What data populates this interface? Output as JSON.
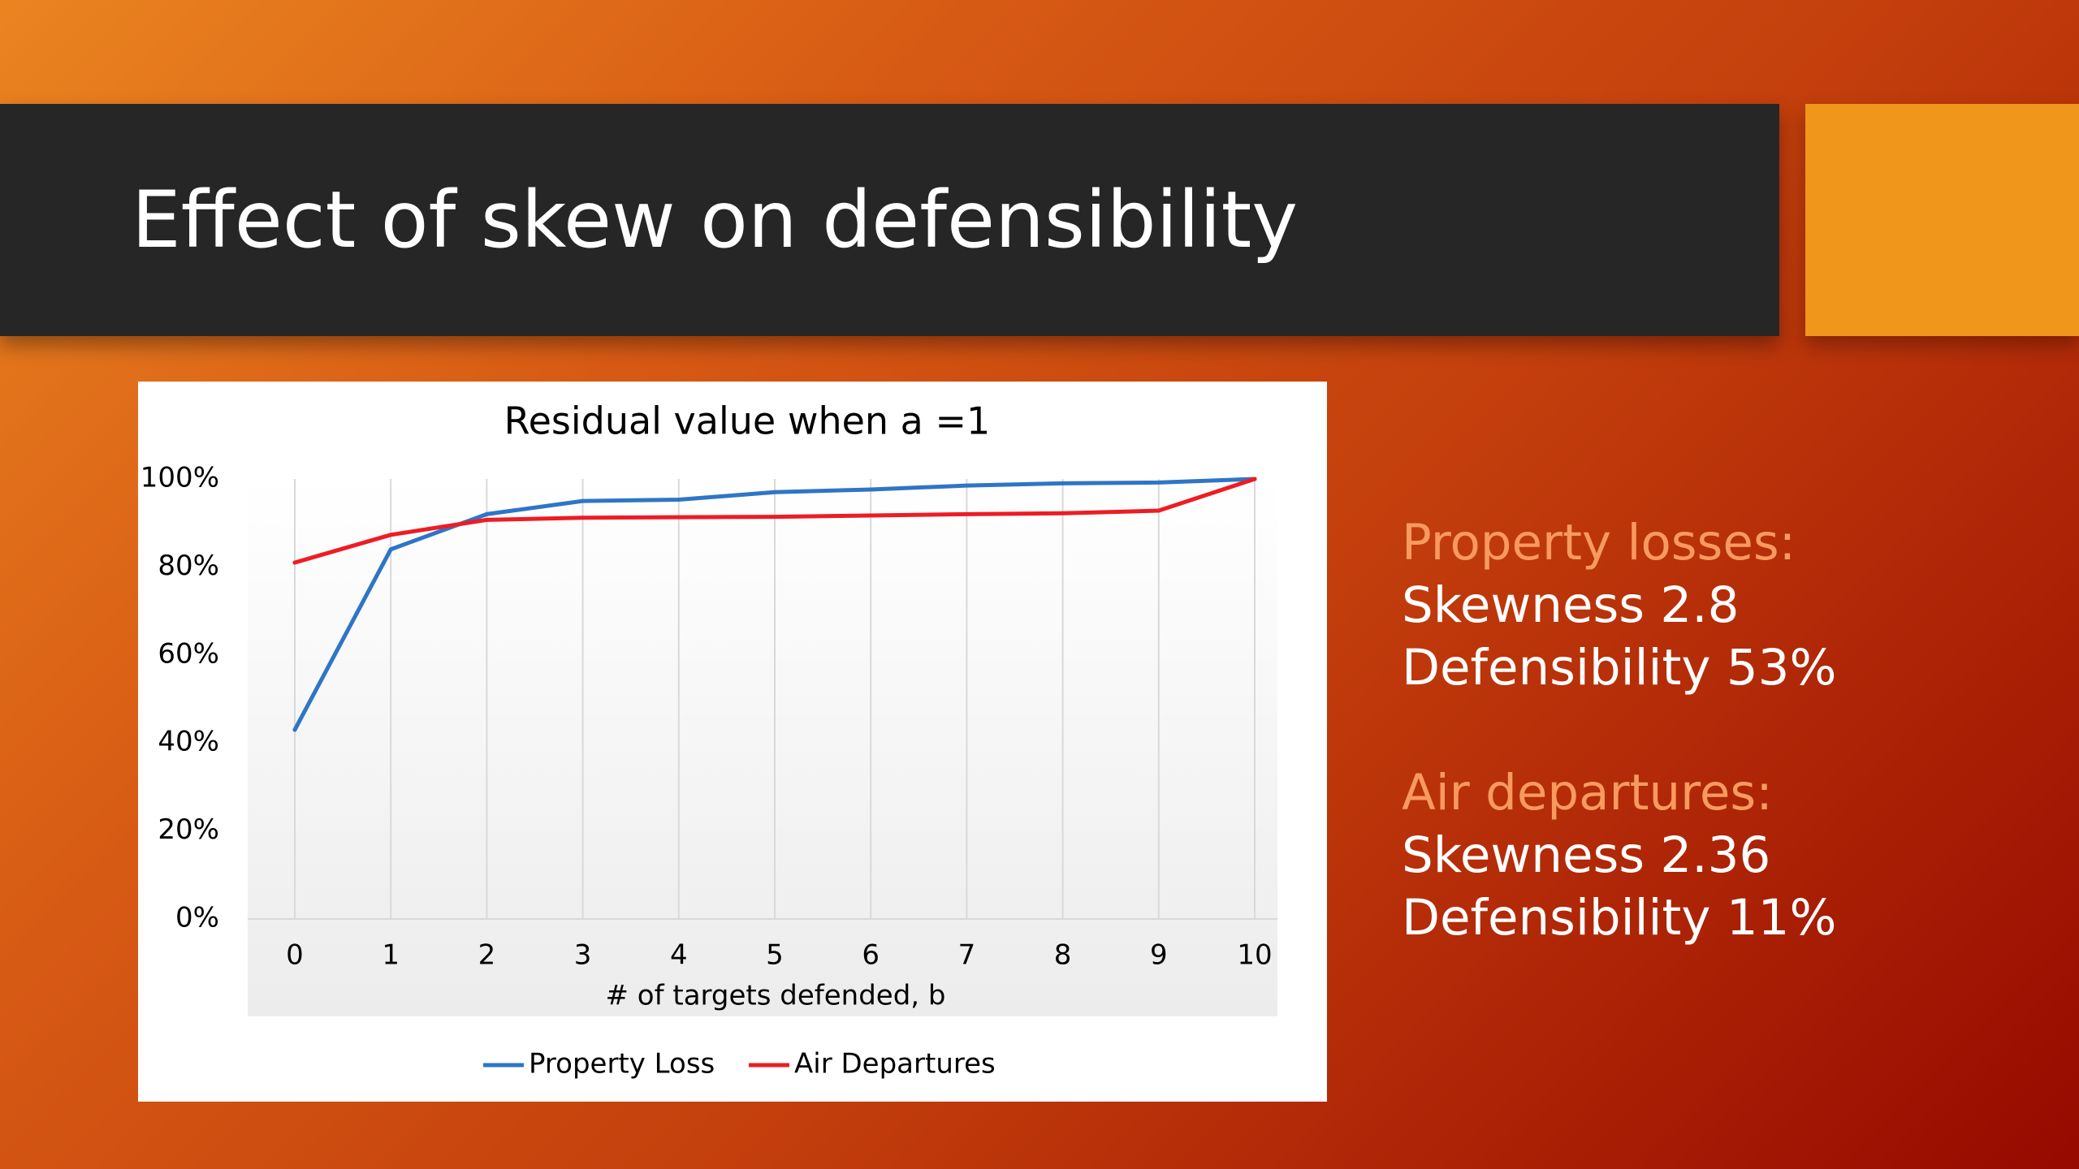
{
  "slide": {
    "title": "Effect of skew on defensibility"
  },
  "summary": {
    "property": {
      "heading": "Property losses:",
      "skewness": "Skewness 2.8",
      "defensibility": "Defensibility 53%"
    },
    "air": {
      "heading": "Air departures:",
      "skewness": "Skewness 2.36",
      "defensibility": "Defensibility 11%"
    }
  },
  "colors": {
    "accent": "#f0961a",
    "title_bar": "#262626",
    "heading_text": "#f79a60",
    "series_property": "#2e75c6",
    "series_air": "#ee1c24"
  },
  "chart_data": {
    "type": "line",
    "title": "Residual value when a =1",
    "xlabel": "# of targets defended, b",
    "ylabel": "",
    "x": [
      0,
      1,
      2,
      3,
      4,
      5,
      6,
      7,
      8,
      9,
      10
    ],
    "ylim": [
      0,
      100
    ],
    "y_ticks": [
      "0%",
      "20%",
      "40%",
      "60%",
      "80%",
      "100%"
    ],
    "y_tick_values": [
      0,
      20,
      40,
      60,
      80,
      100
    ],
    "grid": "vertical",
    "legend": "bottom",
    "series": [
      {
        "name": "Property Loss",
        "color": "#2e75c6",
        "values": [
          43,
          84,
          92,
          95,
          95.3,
          97,
          97.6,
          98.5,
          99,
          99.2,
          100
        ]
      },
      {
        "name": "Air Departures",
        "color": "#ee1c24",
        "values": [
          81,
          87.3,
          90.7,
          91.2,
          91.3,
          91.4,
          91.7,
          92,
          92.2,
          92.8,
          100
        ]
      }
    ]
  }
}
